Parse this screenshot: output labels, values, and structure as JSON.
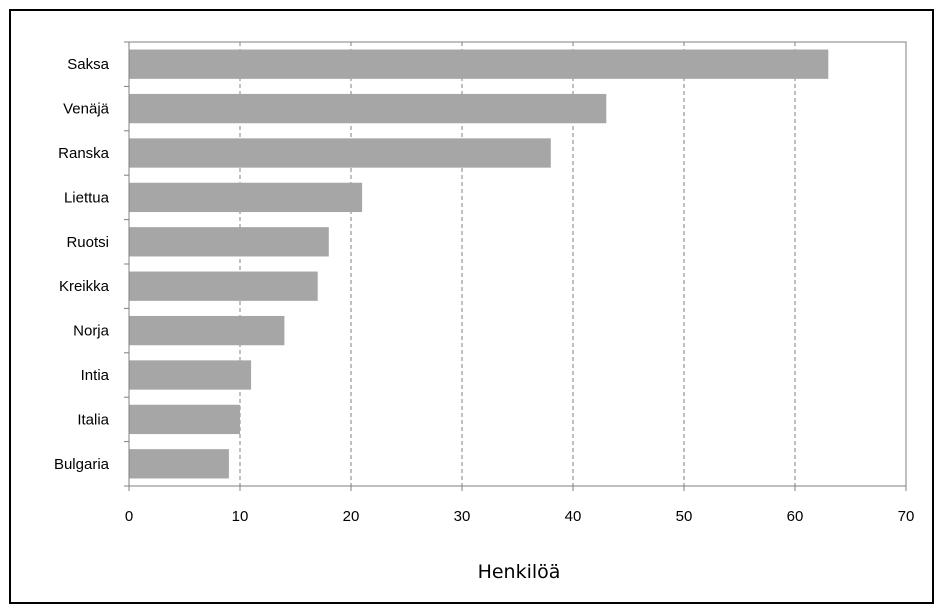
{
  "chart_data": {
    "type": "bar",
    "orientation": "horizontal",
    "categories": [
      "Saksa",
      "Venäjä",
      "Ranska",
      "Liettua",
      "Ruotsi",
      "Kreikka",
      "Norja",
      "Intia",
      "Italia",
      "Bulgaria"
    ],
    "values": [
      63,
      43,
      38,
      21,
      18,
      17,
      14,
      11,
      10,
      9
    ],
    "title": "",
    "xlabel": "Henkilöä",
    "ylabel": "",
    "xlim": [
      0,
      70
    ],
    "xticks": [
      "0",
      "10",
      "20",
      "30",
      "40",
      "50",
      "60",
      "70"
    ],
    "grid": "vertical dashed",
    "legend": "none",
    "colors": {
      "bar": "#a6a6a6",
      "grid": "#808080",
      "axis": "#808080",
      "frame": "#000000"
    }
  }
}
